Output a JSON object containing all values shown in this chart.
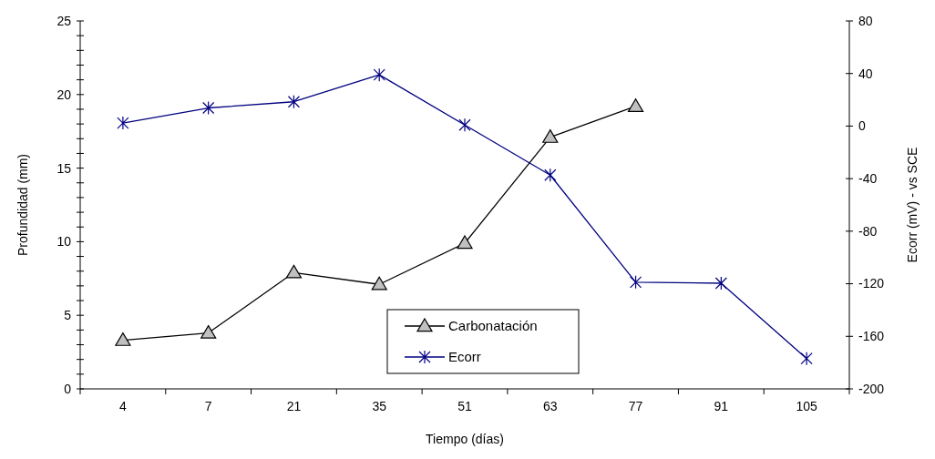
{
  "chart_data": {
    "type": "line",
    "xlabel": "Tiempo (días)",
    "ylabel": "Profundidad (mm)",
    "y2label": "Ecorr (mV) - vs SCE",
    "categories": [
      "4",
      "7",
      "21",
      "35",
      "51",
      "63",
      "77",
      "91",
      "105"
    ],
    "series": [
      {
        "name": "Carbonatación",
        "color": "#000000",
        "marker": "triangle",
        "values": [
          3.3,
          3.8,
          7.9,
          7.1,
          9.9,
          17.1,
          19.2,
          null,
          null
        ]
      },
      {
        "name": "Ecorr",
        "color": "#000080",
        "marker": "cross",
        "axis": "y2",
        "values": [
          2.3,
          13.8,
          18.5,
          39,
          0.8,
          -37.3,
          -118.8,
          -119.6,
          -176.9
        ]
      }
    ],
    "ylim": [
      0,
      25
    ],
    "yticks": [
      0,
      {
        "value": 1,
        "label": null
      },
      {
        "value": 2,
        "label": null
      },
      {
        "value": 3,
        "label": null
      },
      {
        "value": 4,
        "label": null
      },
      5,
      {
        "value": 6,
        "label": null
      },
      {
        "value": 7,
        "label": null
      },
      {
        "value": 8,
        "label": null
      },
      {
        "value": 9,
        "label": null
      },
      10,
      {
        "value": 11,
        "label": null
      },
      {
        "value": 12,
        "label": null
      },
      {
        "value": 13,
        "label": null
      },
      {
        "value": 14,
        "label": null
      },
      15,
      {
        "value": 16,
        "label": null
      },
      {
        "value": 17,
        "label": null
      },
      {
        "value": 18,
        "label": null
      },
      {
        "value": 19,
        "label": null
      },
      20,
      {
        "value": 21,
        "label": null
      },
      {
        "value": 22,
        "label": null
      },
      {
        "value": 23,
        "label": null
      },
      {
        "value": 24,
        "label": null
      },
      25
    ],
    "y2lim": [
      -200,
      80
    ],
    "y2ticks": [
      -200,
      -160,
      -120,
      -80,
      -40,
      0,
      40,
      80
    ],
    "legend": "bottom",
    "grid": false
  }
}
